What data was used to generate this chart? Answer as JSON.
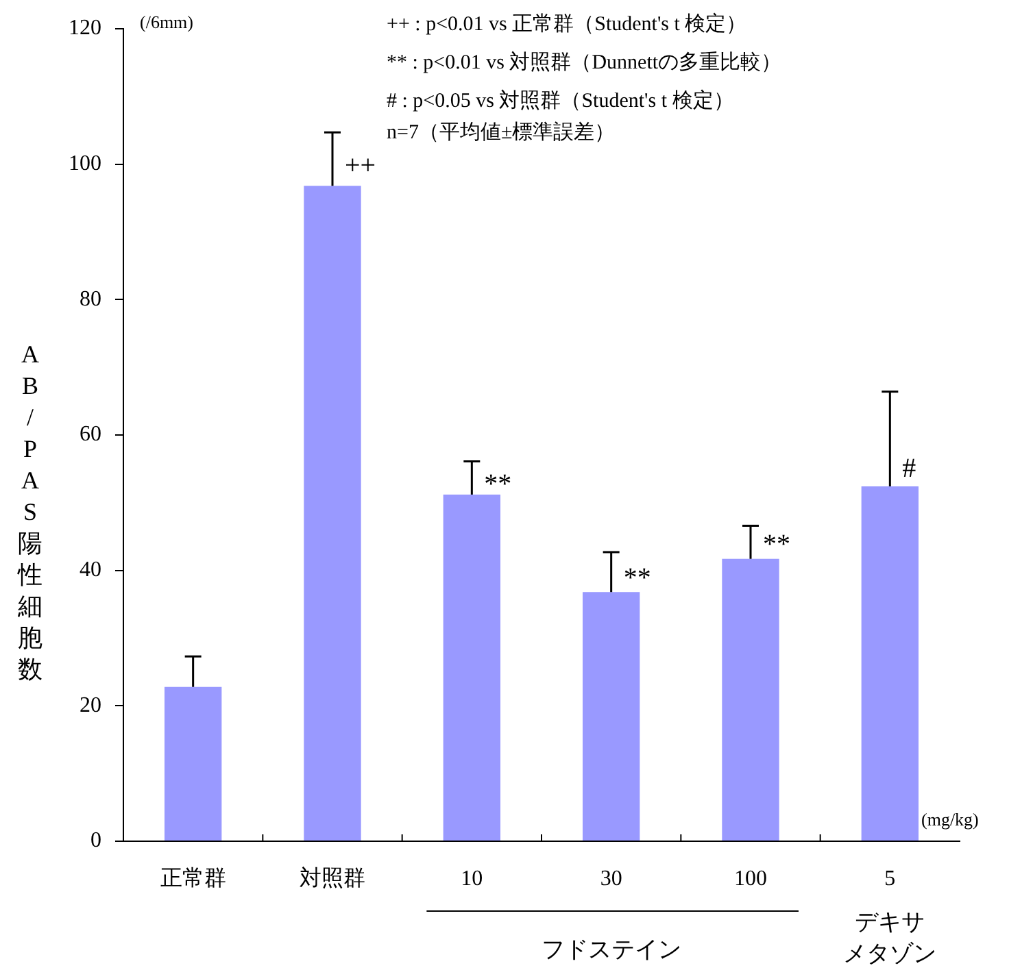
{
  "chart_data": {
    "type": "bar",
    "ylabel": "AB/PAS陽性細胞数",
    "categories": [
      "正常群",
      "対照群",
      "10",
      "30",
      "100",
      "5"
    ],
    "values": [
      22.8,
      96.8,
      51.2,
      36.8,
      41.7,
      52.4
    ],
    "errors": [
      [
        22.8,
        27.3
      ],
      [
        96.8,
        104.7
      ],
      [
        51.2,
        56.1
      ],
      [
        36.8,
        42.7
      ],
      [
        41.7,
        46.6
      ],
      [
        52.4,
        66.4
      ]
    ],
    "color": "#9999ff",
    "ylim": [
      0,
      120
    ],
    "yticks": [
      0,
      20,
      40,
      60,
      80,
      100,
      120
    ],
    "grid": false,
    "legend": false,
    "annotations": [
      "(/6mm)",
      "++ : p<0.01 vs 正常群（Student's t 検定）",
      "** : p<0.01 vs 対照群（Dunnettの多重比較）",
      "# : p<0.05 vs 対照群（Student's t 検定）",
      "n=7（平均値±標準誤差）",
      "(mg/kg)",
      {
        "text": "++",
        "x": "対照群",
        "y": 99.6
      },
      {
        "text": "**",
        "x": "10",
        "y": 52.6
      },
      {
        "text": "**",
        "x": "30",
        "y": 38.7
      },
      {
        "text": "**",
        "x": "100",
        "y": 43.7
      },
      {
        "text": "#",
        "x": "5",
        "y": 54.9
      },
      "フドステイン",
      "デキサメタゾン"
    ]
  }
}
